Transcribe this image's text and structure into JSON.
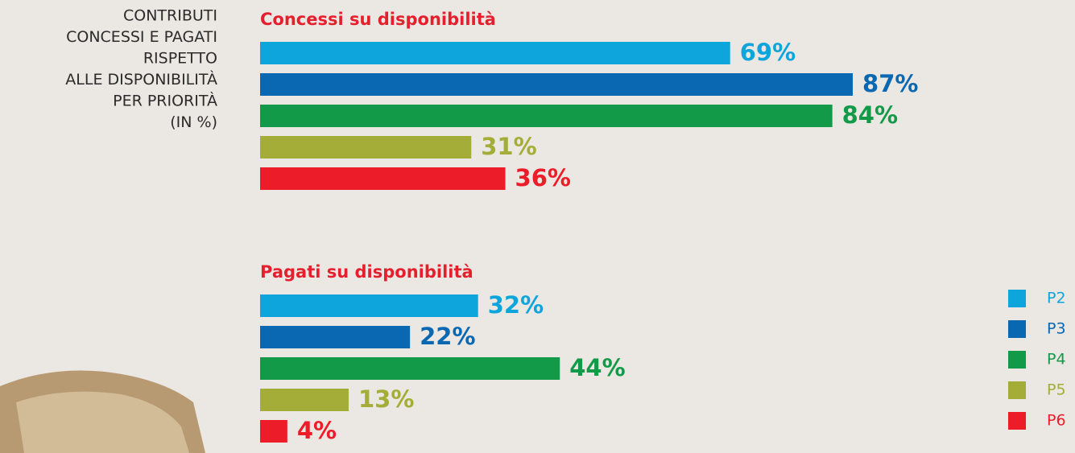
{
  "heading": [
    "CONTRIBUTI",
    "CONCESSI E PAGATI",
    "RISPETTO",
    "ALLE DISPONIBILITÀ",
    "PER PRIORITÀ",
    "(IN %)"
  ],
  "categories": [
    "P2",
    "P3",
    "P4",
    "P5",
    "P6"
  ],
  "colors": [
    "#0ea5dc",
    "#0a67b1",
    "#139a48",
    "#a3ad37",
    "#ed1c29"
  ],
  "chart_data": [
    {
      "type": "bar",
      "title": "Concessi su disponibilità",
      "xlim": [
        0,
        100
      ],
      "values": [
        69,
        87,
        84,
        31,
        36
      ],
      "value_labels": [
        "69%",
        "87%",
        "84%",
        "31%",
        "36%"
      ]
    },
    {
      "type": "bar",
      "title": "Pagati su disponibilità",
      "xlim": [
        0,
        100
      ],
      "values": [
        32,
        22,
        44,
        13,
        4
      ],
      "value_labels": [
        "32%",
        "22%",
        "44%",
        "13%",
        "4%"
      ]
    }
  ]
}
